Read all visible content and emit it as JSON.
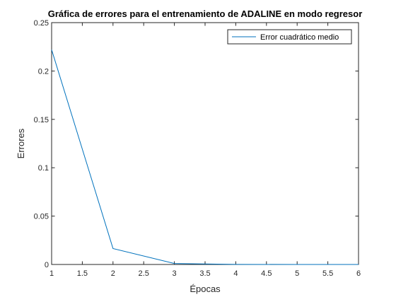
{
  "chart_data": {
    "type": "line",
    "title": "Gráfica de errores para el entrenamiento de ADALINE en modo regresor",
    "xlabel": "Épocas",
    "ylabel": "Errores",
    "xlim": [
      1,
      6
    ],
    "ylim": [
      0,
      0.25
    ],
    "x_ticks": [
      "1",
      "1.5",
      "2",
      "2.5",
      "3",
      "3.5",
      "4",
      "4.5",
      "5",
      "5.5",
      "6"
    ],
    "y_ticks": [
      "0",
      "0.05",
      "0.1",
      "0.15",
      "0.2",
      "0.25"
    ],
    "grid": false,
    "legend_position": "top-right",
    "series": [
      {
        "name": "Error cuadrático medio",
        "color": "#0072BD",
        "x": [
          1,
          2,
          3,
          4,
          5,
          6
        ],
        "y": [
          0.222,
          0.0165,
          0.001,
          0.0001,
          0.0,
          0.0
        ]
      }
    ]
  }
}
